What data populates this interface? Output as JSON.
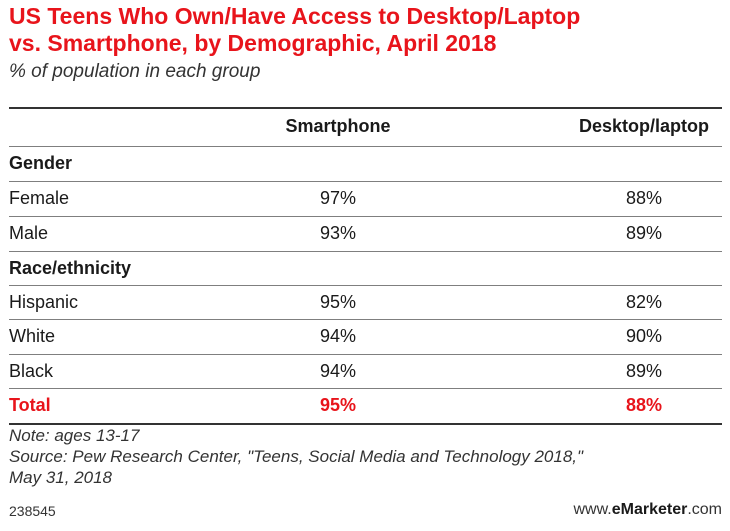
{
  "chart_data": {
    "type": "table",
    "title_line1": "US Teens Who Own/Have Access to Desktop/Laptop",
    "title_line2": "vs. Smartphone, by Demographic, April 2018",
    "subtitle": "% of population in each group",
    "columns": [
      "Smartphone",
      "Desktop/laptop"
    ],
    "sections": [
      {
        "label": "Gender",
        "rows": [
          {
            "label": "Female",
            "values": [
              "97%",
              "88%"
            ]
          },
          {
            "label": "Male",
            "values": [
              "93%",
              "89%"
            ]
          }
        ]
      },
      {
        "label": "Race/ethnicity",
        "rows": [
          {
            "label": "Hispanic",
            "values": [
              "95%",
              "82%"
            ]
          },
          {
            "label": "White",
            "values": [
              "94%",
              "90%"
            ]
          },
          {
            "label": "Black",
            "values": [
              "94%",
              "89%"
            ]
          }
        ]
      }
    ],
    "total": {
      "label": "Total",
      "values": [
        "95%",
        "88%"
      ]
    },
    "colors": {
      "accent": "#e8141b",
      "text": "#1a1a1a"
    }
  },
  "notes": {
    "note": "Note: ages 13-17",
    "source_line1": "Source: Pew Research Center, \"Teens, Social Media and Technology 2018,\"",
    "source_line2": "May 31, 2018"
  },
  "footer": {
    "chart_id": "238545",
    "brand_prefix": "www.",
    "brand_bold": "eMarketer",
    "brand_suffix": ".com"
  }
}
